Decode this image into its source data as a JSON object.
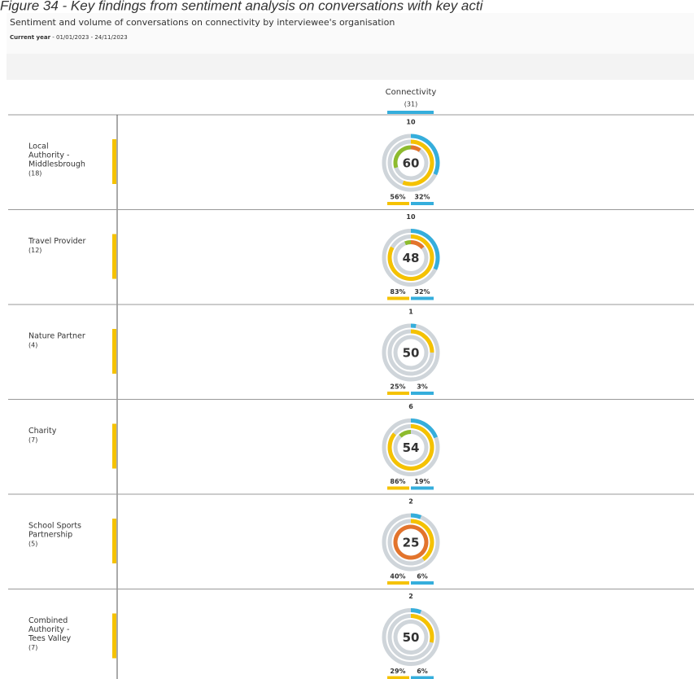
{
  "figure_caption": "Figure 34 - Key findings from sentiment analysis on conversations with key acti",
  "title": "Sentiment and volume of conversations on connectivity by interviewee's organisation",
  "period_label": "Current year",
  "period": " - 01/01/2023 - 24/11/2023",
  "column": {
    "label": "Connectivity",
    "count": "(31)"
  },
  "rows": [
    {
      "label": [
        "Local",
        "Authority -",
        "Middlesbrough"
      ],
      "count": "(18)",
      "mentions": 10,
      "score": 60,
      "share": {
        "value": 56,
        "label": "56%"
      },
      "volume": {
        "value": 32,
        "label": "32%"
      },
      "positive": 30,
      "negative": 10
    },
    {
      "label": [
        "Travel Provider"
      ],
      "count": "(12)",
      "mentions": 10,
      "score": 48,
      "share": {
        "value": 83,
        "label": "83%"
      },
      "volume": {
        "value": 32,
        "label": "32%"
      },
      "positive": 6,
      "negative": 14
    },
    {
      "label": [
        "Nature Partner"
      ],
      "count": "(4)",
      "mentions": 1,
      "score": 50,
      "share": {
        "value": 25,
        "label": "25%"
      },
      "volume": {
        "value": 3,
        "label": "3%"
      },
      "positive": 0,
      "negative": 0
    },
    {
      "label": [
        "Charity"
      ],
      "count": "(7)",
      "mentions": 6,
      "score": 54,
      "share": {
        "value": 86,
        "label": "86%"
      },
      "volume": {
        "value": 19,
        "label": "19%"
      },
      "positive": 12,
      "negative": 0
    },
    {
      "label": [
        "School Sports",
        "Partnership"
      ],
      "count": "(5)",
      "mentions": 2,
      "score": 25,
      "share": {
        "value": 40,
        "label": "40%"
      },
      "volume": {
        "value": 6,
        "label": "6%"
      },
      "positive": 0,
      "negative": 100
    },
    {
      "label": [
        "Combined",
        "Authority -",
        "Tees Valley"
      ],
      "count": "(7)",
      "mentions": 2,
      "score": 50,
      "share": {
        "value": 29,
        "label": "29%"
      },
      "volume": {
        "value": 6,
        "label": "6%"
      },
      "positive": 0,
      "negative": 0
    }
  ]
}
